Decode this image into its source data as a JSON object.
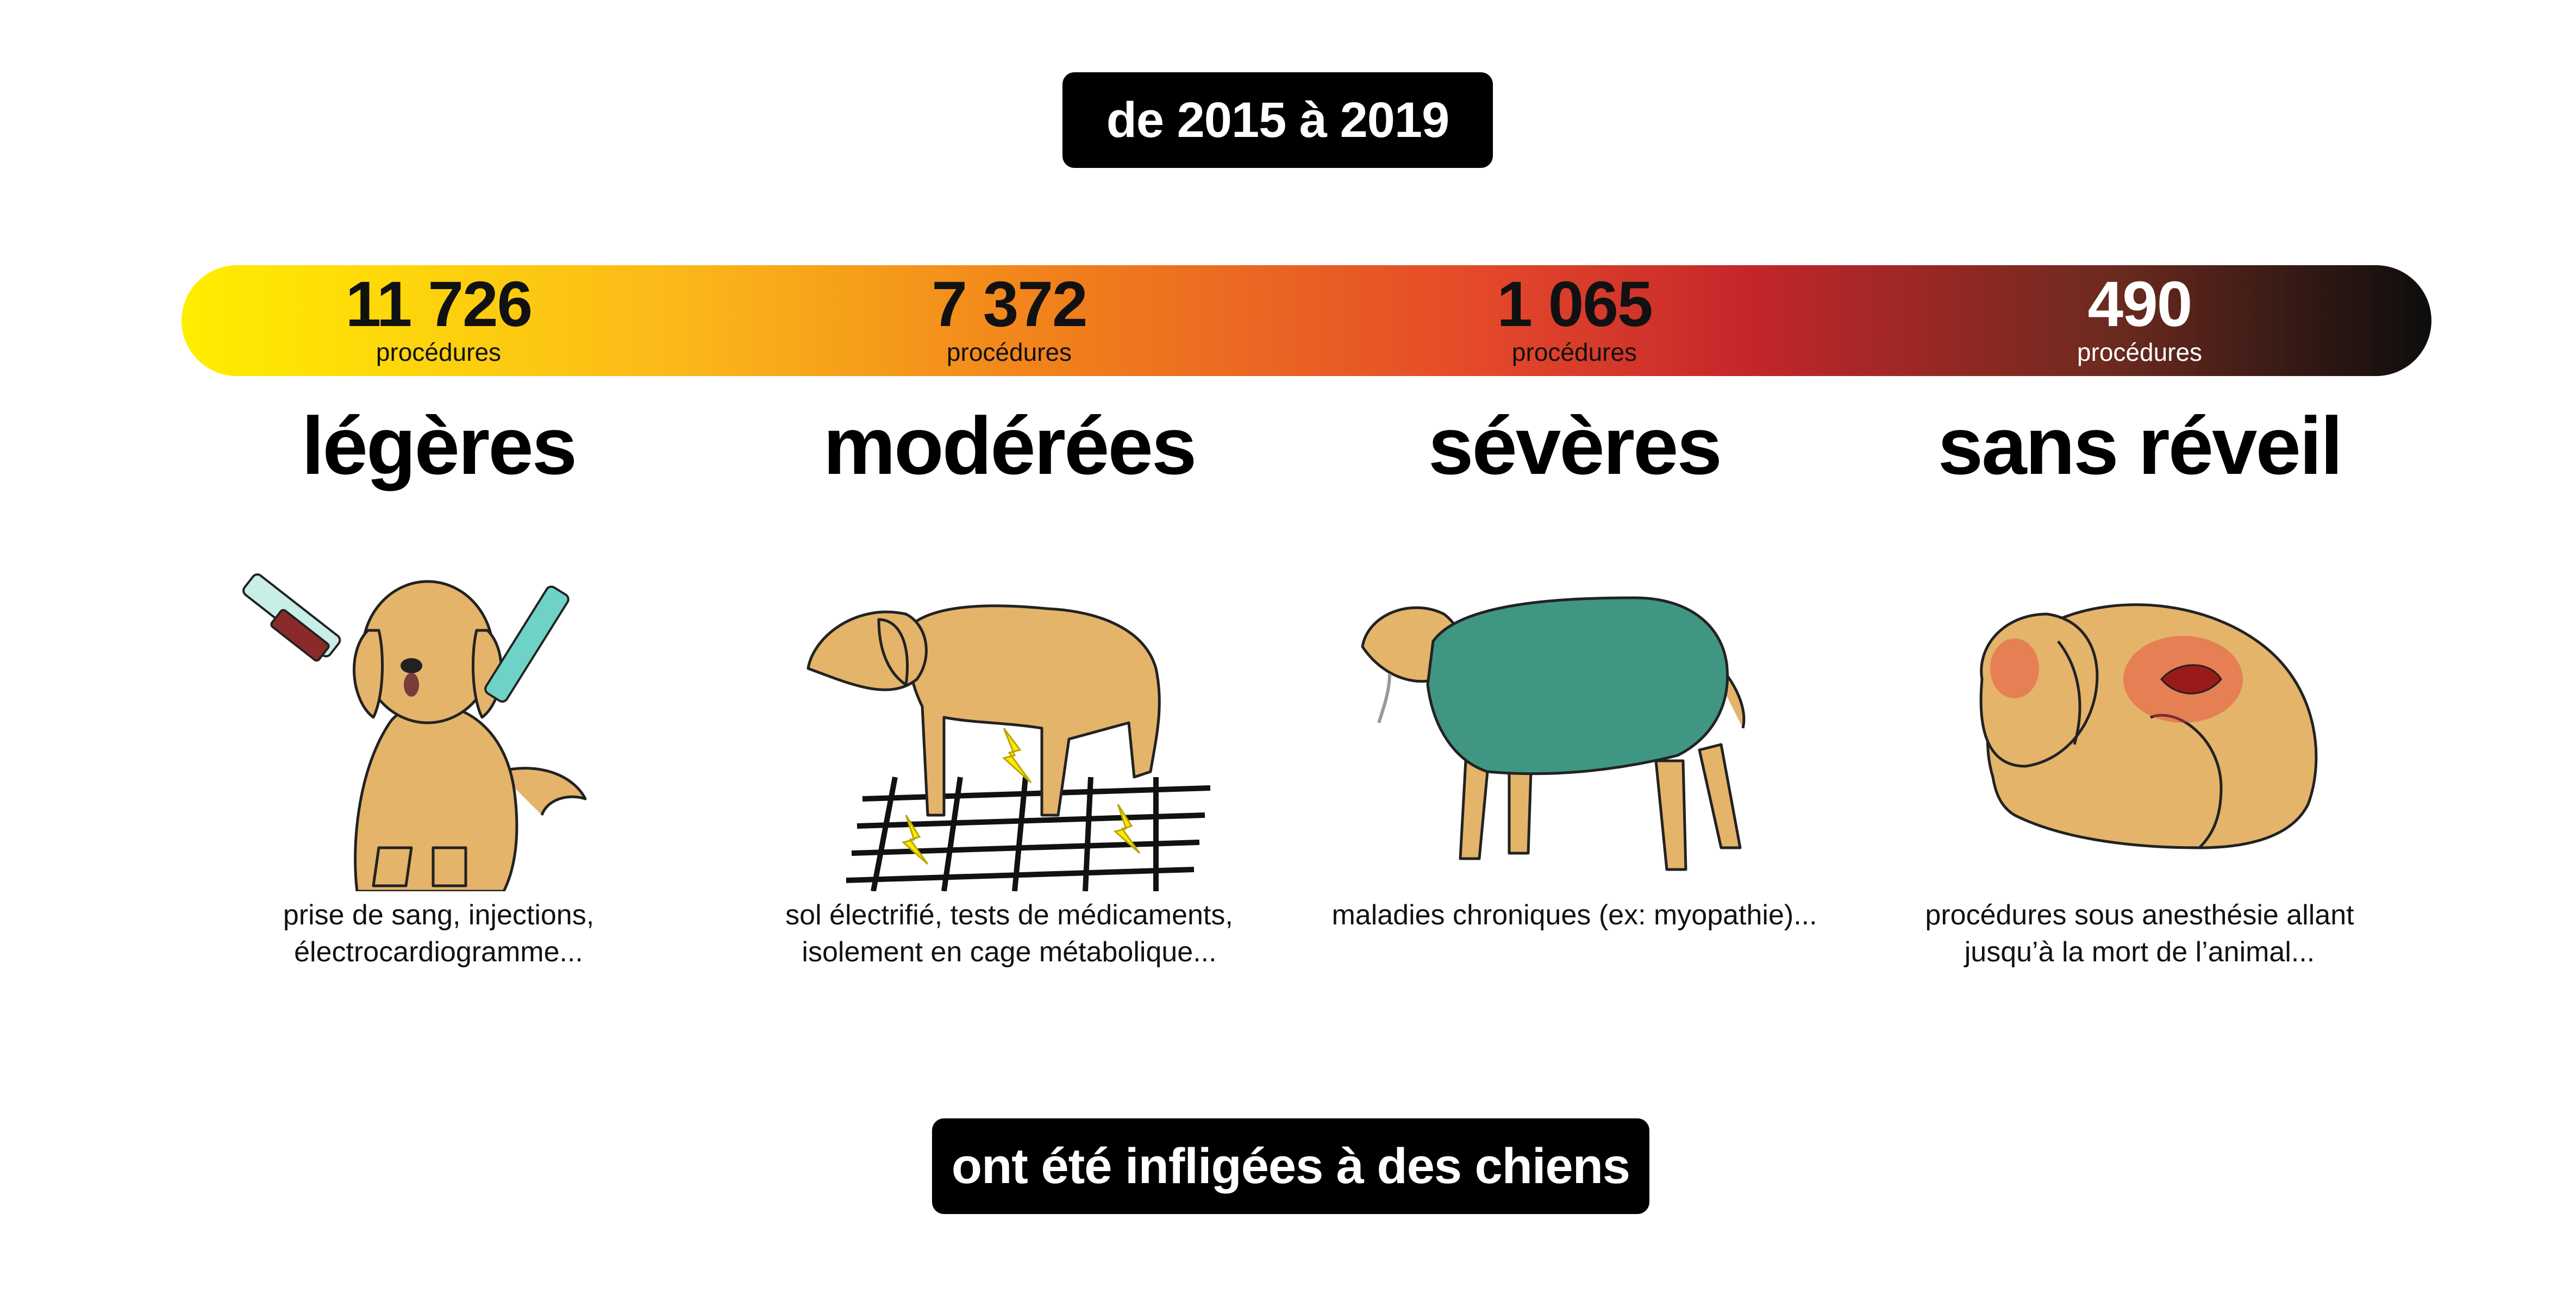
{
  "header": {
    "period": "de 2015 à 2019"
  },
  "categories": [
    {
      "count": "11 726",
      "unit": "procédures",
      "level": "légères",
      "description": "prise de sang, injections, électrocardiogramme...",
      "icon": "dog-injection-icon"
    },
    {
      "count": "7 372",
      "unit": "procédures",
      "level": "modérées",
      "description": "sol électrifié, tests de médicaments, isolement en cage métabolique...",
      "icon": "dog-electrified-floor-icon"
    },
    {
      "count": "1 065",
      "unit": "procédures",
      "level": "sévères",
      "description": "maladies chroniques (ex: myopathie)...",
      "icon": "dog-sick-icon"
    },
    {
      "count": "490",
      "unit": "procédures",
      "level": "sans réveil",
      "description": "procédures sous anesthésie allant jusqu’à la mort de l’animal...",
      "icon": "dog-dead-icon"
    }
  ],
  "footer": {
    "caption": "ont été infligées à des chiens"
  },
  "colors": {
    "gradient_start": "#ffee00",
    "gradient_mid": "#f07d1c",
    "gradient_red": "#c2262a",
    "gradient_end": "#0d0d0d",
    "dog_fur": "#e3b46a",
    "coat": "#3f9683",
    "syringe": "#6ed3c6"
  }
}
